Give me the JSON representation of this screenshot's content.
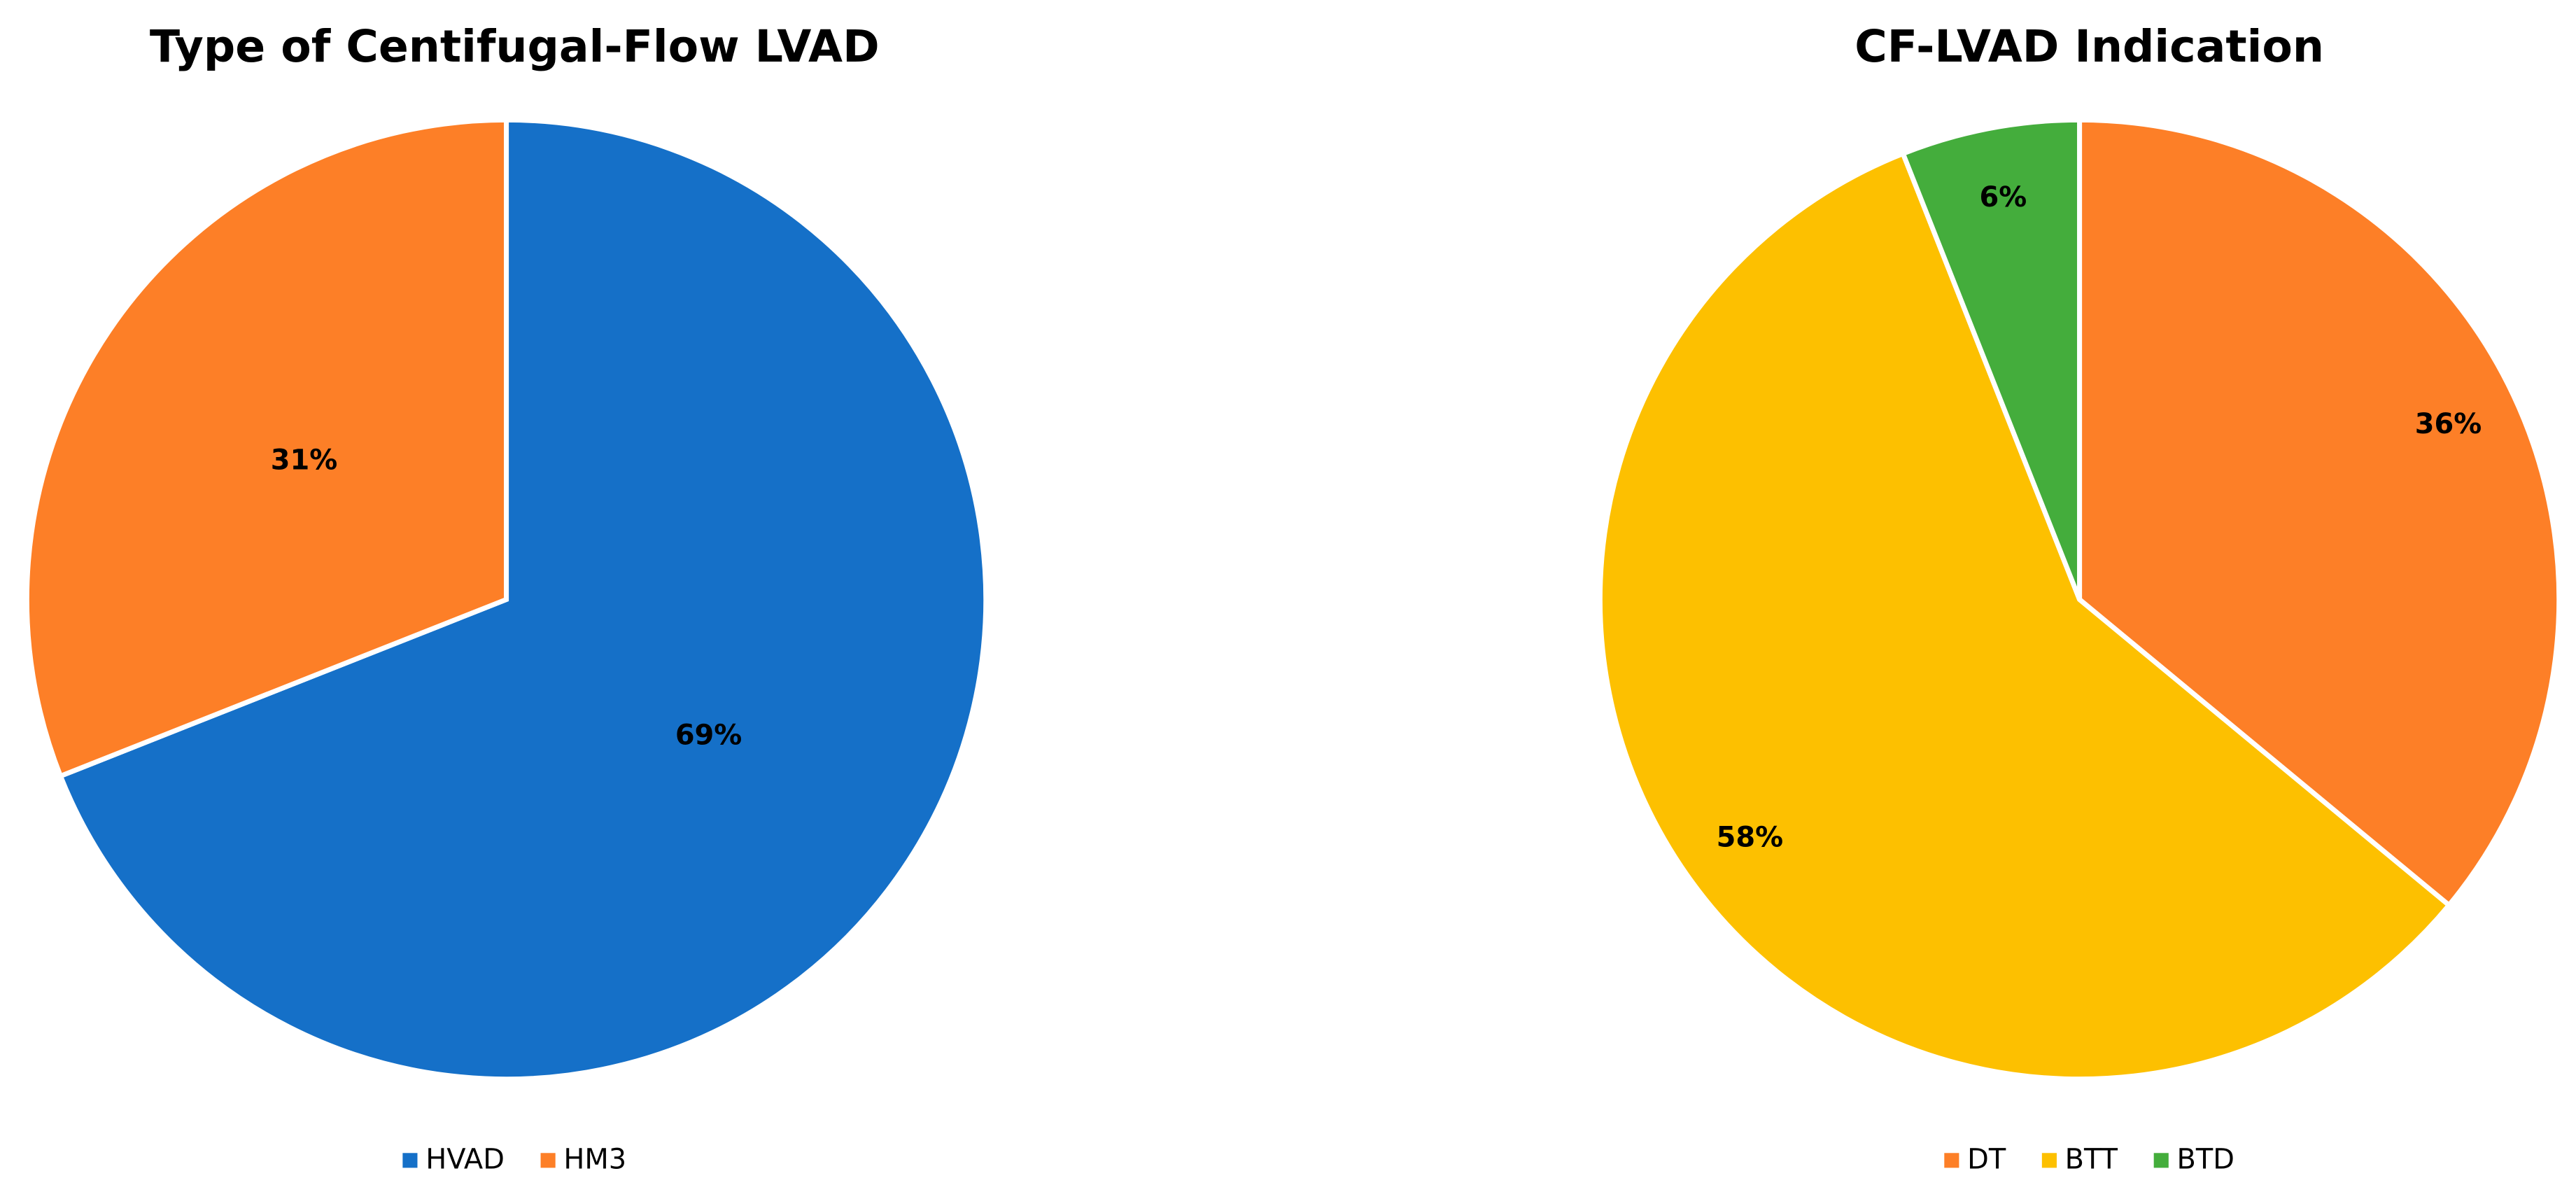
{
  "chart_data": [
    {
      "type": "pie",
      "title": "Type of Centifugal-Flow LVAD",
      "categories": [
        "HVAD",
        "HM3"
      ],
      "values": [
        69,
        31
      ],
      "value_labels": [
        "69%",
        "31%"
      ],
      "colors": [
        "#1570c8",
        "#fd7f27"
      ],
      "legend": "bottom"
    },
    {
      "type": "pie",
      "title": "CF-LVAD Indication",
      "categories": [
        "DT",
        "BTT",
        "BTD"
      ],
      "values": [
        36,
        58,
        6
      ],
      "value_labels": [
        "36%",
        "58%",
        "6%"
      ],
      "colors": [
        "#fd7f27",
        "#fdc000",
        "#44ad3c"
      ],
      "legend": "bottom"
    }
  ]
}
